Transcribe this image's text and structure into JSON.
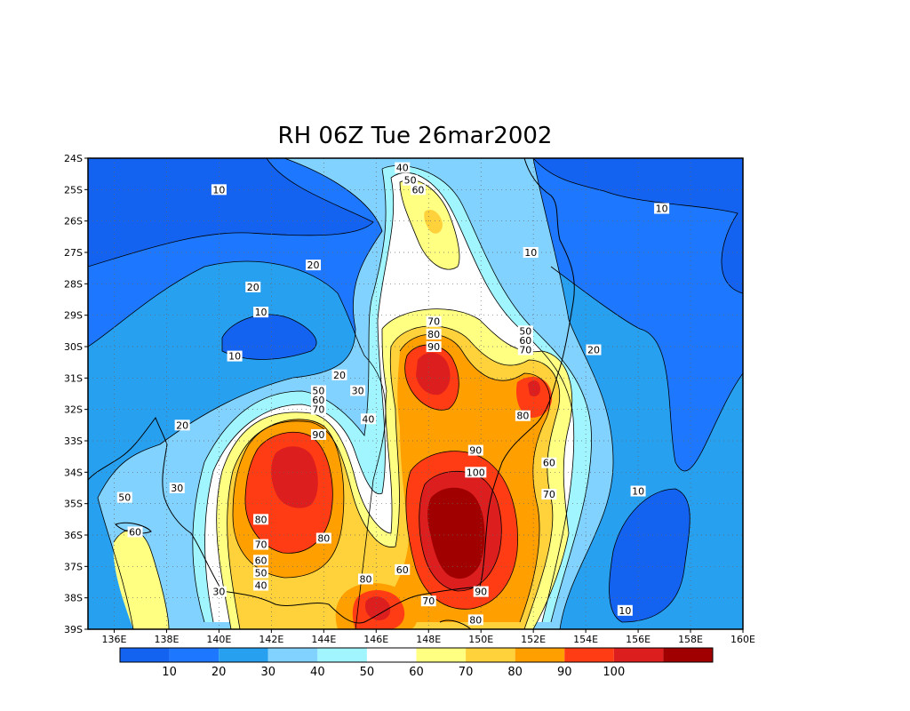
{
  "title": "RH 06Z Tue 26mar2002",
  "map": {
    "lon_range": [
      135,
      160
    ],
    "lat_range": [
      -39,
      -24
    ],
    "x_ticks": [
      "136E",
      "138E",
      "140E",
      "142E",
      "144E",
      "146E",
      "148E",
      "150E",
      "152E",
      "154E",
      "156E",
      "158E",
      "160E"
    ],
    "x_tick_lons": [
      136,
      138,
      140,
      142,
      144,
      146,
      148,
      150,
      152,
      154,
      156,
      158,
      160
    ],
    "y_ticks": [
      "24S",
      "25S",
      "26S",
      "27S",
      "28S",
      "29S",
      "30S",
      "31S",
      "32S",
      "33S",
      "34S",
      "35S",
      "36S",
      "37S",
      "38S",
      "39S"
    ],
    "y_tick_lats": [
      -24,
      -25,
      -26,
      -27,
      -28,
      -29,
      -30,
      -31,
      -32,
      -33,
      -34,
      -35,
      -36,
      -37,
      -38,
      -39
    ],
    "grid": "dotted"
  },
  "colorbar": {
    "colors": [
      "#1463f0",
      "#1e78ff",
      "#28a0f0",
      "#82d2ff",
      "#a0f5ff",
      "#ffffff",
      "#ffff82",
      "#ffd23c",
      "#ffa000",
      "#ff3c14",
      "#dc1e1e",
      "#a00000"
    ],
    "labels": [
      "10",
      "20",
      "30",
      "40",
      "50",
      "60",
      "70",
      "80",
      "90",
      "100"
    ]
  },
  "contour_labels": [
    {
      "text": "10",
      "lon": 140.0,
      "lat": -25.0
    },
    {
      "text": "10",
      "lon": 156.9,
      "lat": -25.6
    },
    {
      "text": "10",
      "lon": 151.9,
      "lat": -27.0
    },
    {
      "text": "20",
      "lon": 143.6,
      "lat": -27.4
    },
    {
      "text": "20",
      "lon": 141.3,
      "lat": -28.1
    },
    {
      "text": "10",
      "lon": 141.6,
      "lat": -28.9
    },
    {
      "text": "10",
      "lon": 140.6,
      "lat": -30.3
    },
    {
      "text": "20",
      "lon": 144.6,
      "lat": -30.9
    },
    {
      "text": "30",
      "lon": 145.3,
      "lat": -31.4
    },
    {
      "text": "40",
      "lon": 145.7,
      "lat": -32.3
    },
    {
      "text": "20",
      "lon": 138.6,
      "lat": -32.5
    },
    {
      "text": "20",
      "lon": 154.3,
      "lat": -30.1
    },
    {
      "text": "40",
      "lon": 147.0,
      "lat": -24.3
    },
    {
      "text": "50",
      "lon": 147.3,
      "lat": -24.7
    },
    {
      "text": "60",
      "lon": 147.6,
      "lat": -25.0
    },
    {
      "text": "50",
      "lon": 151.7,
      "lat": -29.5
    },
    {
      "text": "60",
      "lon": 151.7,
      "lat": -29.8
    },
    {
      "text": "70",
      "lon": 151.7,
      "lat": -30.1
    },
    {
      "text": "70",
      "lon": 148.2,
      "lat": -29.2
    },
    {
      "text": "80",
      "lon": 148.2,
      "lat": -29.6
    },
    {
      "text": "90",
      "lon": 148.2,
      "lat": -30.0
    },
    {
      "text": "80",
      "lon": 151.6,
      "lat": -32.2
    },
    {
      "text": "50",
      "lon": 143.8,
      "lat": -31.4
    },
    {
      "text": "60",
      "lon": 143.8,
      "lat": -31.7
    },
    {
      "text": "70",
      "lon": 143.8,
      "lat": -32.0
    },
    {
      "text": "90",
      "lon": 143.8,
      "lat": -32.8
    },
    {
      "text": "90",
      "lon": 149.8,
      "lat": -33.3
    },
    {
      "text": "100",
      "lon": 149.8,
      "lat": -34.0
    },
    {
      "text": "60",
      "lon": 152.6,
      "lat": -33.7
    },
    {
      "text": "70",
      "lon": 152.6,
      "lat": -34.7
    },
    {
      "text": "10",
      "lon": 156.0,
      "lat": -34.6
    },
    {
      "text": "30",
      "lon": 138.4,
      "lat": -34.5
    },
    {
      "text": "50",
      "lon": 136.4,
      "lat": -34.8
    },
    {
      "text": "60",
      "lon": 136.8,
      "lat": -35.9
    },
    {
      "text": "80",
      "lon": 141.6,
      "lat": -35.5
    },
    {
      "text": "80",
      "lon": 144.0,
      "lat": -36.1
    },
    {
      "text": "70",
      "lon": 141.6,
      "lat": -36.3
    },
    {
      "text": "60",
      "lon": 141.6,
      "lat": -36.8
    },
    {
      "text": "50",
      "lon": 141.6,
      "lat": -37.2
    },
    {
      "text": "40",
      "lon": 141.6,
      "lat": -37.6
    },
    {
      "text": "30",
      "lon": 140.0,
      "lat": -37.8
    },
    {
      "text": "80",
      "lon": 145.6,
      "lat": -37.4
    },
    {
      "text": "60",
      "lon": 147.0,
      "lat": -37.1
    },
    {
      "text": "70",
      "lon": 148.0,
      "lat": -38.1
    },
    {
      "text": "90",
      "lon": 150.0,
      "lat": -37.8
    },
    {
      "text": "80",
      "lon": 149.8,
      "lat": -38.7
    },
    {
      "text": "10",
      "lon": 155.5,
      "lat": -38.4
    }
  ]
}
